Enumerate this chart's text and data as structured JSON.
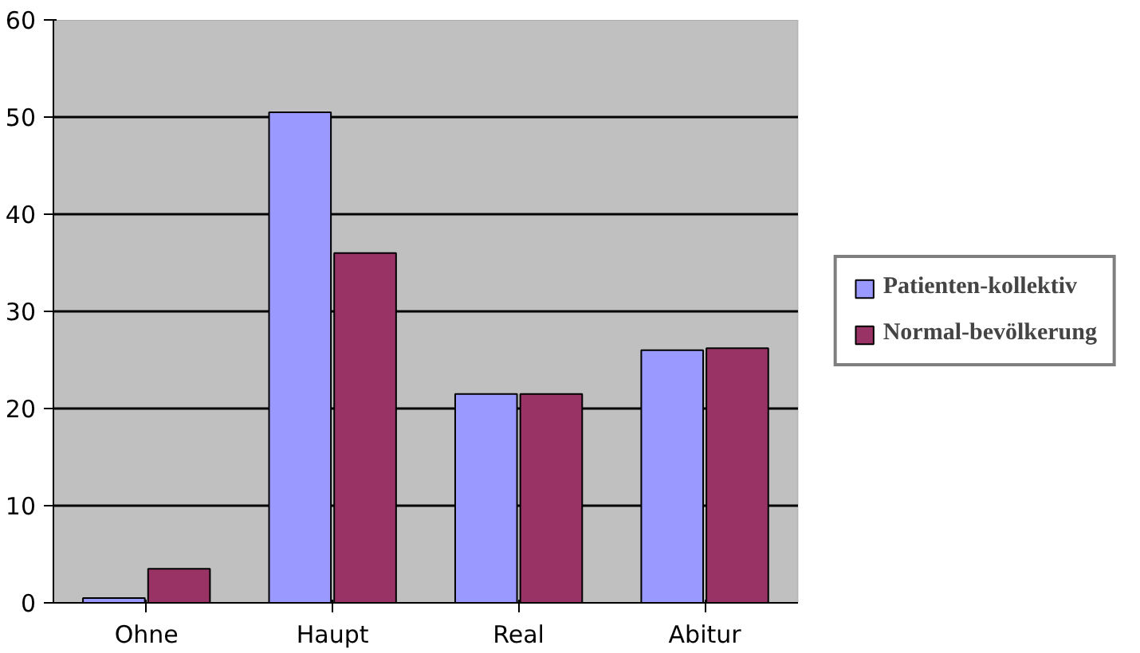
{
  "chart_data": {
    "type": "bar",
    "categories": [
      "Ohne",
      "Haupt",
      "Real",
      "Abitur"
    ],
    "series": [
      {
        "name": "Patienten-kollektiv",
        "color": "#9999ff",
        "values": [
          0.5,
          50.5,
          21.5,
          26
        ]
      },
      {
        "name": "Normal-bevölkerung",
        "color": "#993366",
        "values": [
          3.5,
          36,
          21.5,
          26.2
        ]
      }
    ],
    "ylim": [
      0,
      60
    ],
    "yticks": [
      0,
      10,
      20,
      30,
      40,
      50,
      60
    ],
    "grid": "y",
    "legend": "right"
  }
}
